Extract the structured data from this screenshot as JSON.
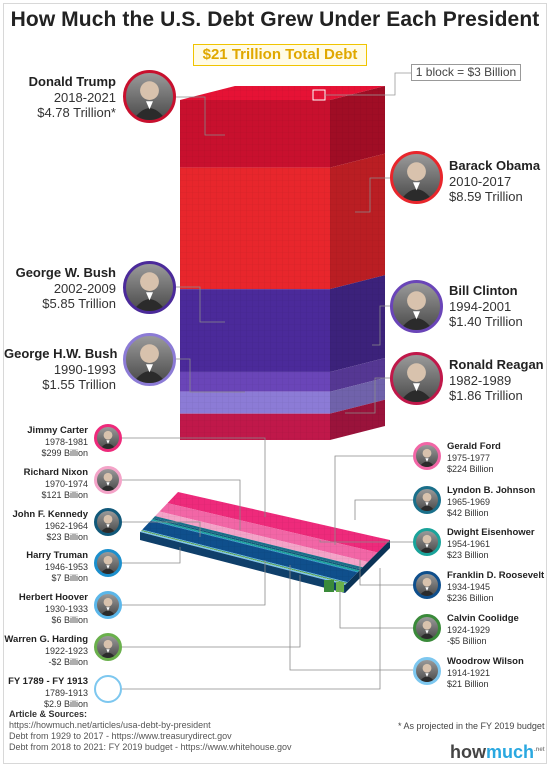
{
  "title": "How Much the U.S. Debt Grew Under Each President",
  "total_label": "$21 Trillion Total Debt",
  "legend_block": "1 block = $3 Billion",
  "footnote": "* As projected in the FY 2019 budget",
  "sources": {
    "heading": "Article & Sources:",
    "lines": [
      "https://howmuch.net/articles/usa-debt-by-president",
      "Debt from 1929 to 2017 - https://www.treasurydirect.gov",
      "Debt from 2018 to 2021: FY 2019 budget - https://www.whitehouse.gov"
    ]
  },
  "logo": {
    "how": "how",
    "much": "much",
    "net": ".net"
  },
  "presidents": [
    {
      "name": "Donald Trump",
      "years": "2018-2021",
      "amount": "$4.78 Trillion*",
      "color": "#c8102e"
    },
    {
      "name": "Barack Obama",
      "years": "2010-2017",
      "amount": "$8.59 Trillion",
      "color": "#e8262c"
    },
    {
      "name": "George W. Bush",
      "years": "2002-2009",
      "amount": "$5.85 Trillion",
      "color": "#4b2a9a"
    },
    {
      "name": "Bill Clinton",
      "years": "1994-2001",
      "amount": "$1.40 Trillion",
      "color": "#6a45b8"
    },
    {
      "name": "George H.W. Bush",
      "years": "1990-1993",
      "amount": "$1.55 Trillion",
      "color": "#8c7bd6"
    },
    {
      "name": "Ronald Reagan",
      "years": "1982-1989",
      "amount": "$1.86 Trillion",
      "color": "#c0184a"
    },
    {
      "name": "Jimmy Carter",
      "years": "1978-1981",
      "amount": "$299 Billion",
      "color": "#ee2a7b"
    },
    {
      "name": "Gerald Ford",
      "years": "1975-1977",
      "amount": "$224 Billion",
      "color": "#f266a6"
    },
    {
      "name": "Richard Nixon",
      "years": "1970-1974",
      "amount": "$121 Billion",
      "color": "#f4a3c8"
    },
    {
      "name": "Lyndon B. Johnson",
      "years": "1965-1969",
      "amount": "$42 Billion",
      "color": "#1a6f8a"
    },
    {
      "name": "John F. Kennedy",
      "years": "1962-1964",
      "amount": "$23 Billion",
      "color": "#12597a"
    },
    {
      "name": "Dwight Eisenhower",
      "years": "1954-1961",
      "amount": "$23 Billion",
      "color": "#1aa39a"
    },
    {
      "name": "Harry Truman",
      "years": "1946-1953",
      "amount": "$7 Billion",
      "color": "#1c8fcc"
    },
    {
      "name": "Franklin D. Roosevelt",
      "years": "1934-1945",
      "amount": "$236 Billion",
      "color": "#0f4f8c"
    },
    {
      "name": "Herbert Hoover",
      "years": "1930-1933",
      "amount": "$6 Billion",
      "color": "#5bb7ea"
    },
    {
      "name": "Calvin Coolidge",
      "years": "1924-1929",
      "amount": "-$5 Billion",
      "color": "#3a8a3a"
    },
    {
      "name": "Warren G. Harding",
      "years": "1922-1923",
      "amount": "-$2 Billion",
      "color": "#6ab04c"
    },
    {
      "name": "Woodrow Wilson",
      "years": "1914-1921",
      "amount": "$21 Billion",
      "color": "#7dc7ef"
    },
    {
      "name": "FY 1789 - FY 1913",
      "years": "1789-1913",
      "amount": "$2.9 Billion",
      "color": "#ffffff"
    }
  ],
  "chart_data": {
    "type": "bar",
    "title": "How Much the U.S. Debt Grew Under Each President",
    "categories": [
      "FY 1789 - FY 1913",
      "Woodrow Wilson",
      "Warren G. Harding",
      "Calvin Coolidge",
      "Herbert Hoover",
      "Franklin D. Roosevelt",
      "Harry Truman",
      "Dwight Eisenhower",
      "John F. Kennedy",
      "Lyndon B. Johnson",
      "Richard Nixon",
      "Gerald Ford",
      "Jimmy Carter",
      "Ronald Reagan",
      "George H.W. Bush",
      "Bill Clinton",
      "George W. Bush",
      "Barack Obama",
      "Donald Trump"
    ],
    "values": [
      2.9,
      21,
      -2,
      -5,
      6,
      236,
      7,
      23,
      23,
      42,
      121,
      224,
      299,
      1860,
      1550,
      1400,
      5850,
      8590,
      4780
    ],
    "unit": "$ Billion"
  }
}
